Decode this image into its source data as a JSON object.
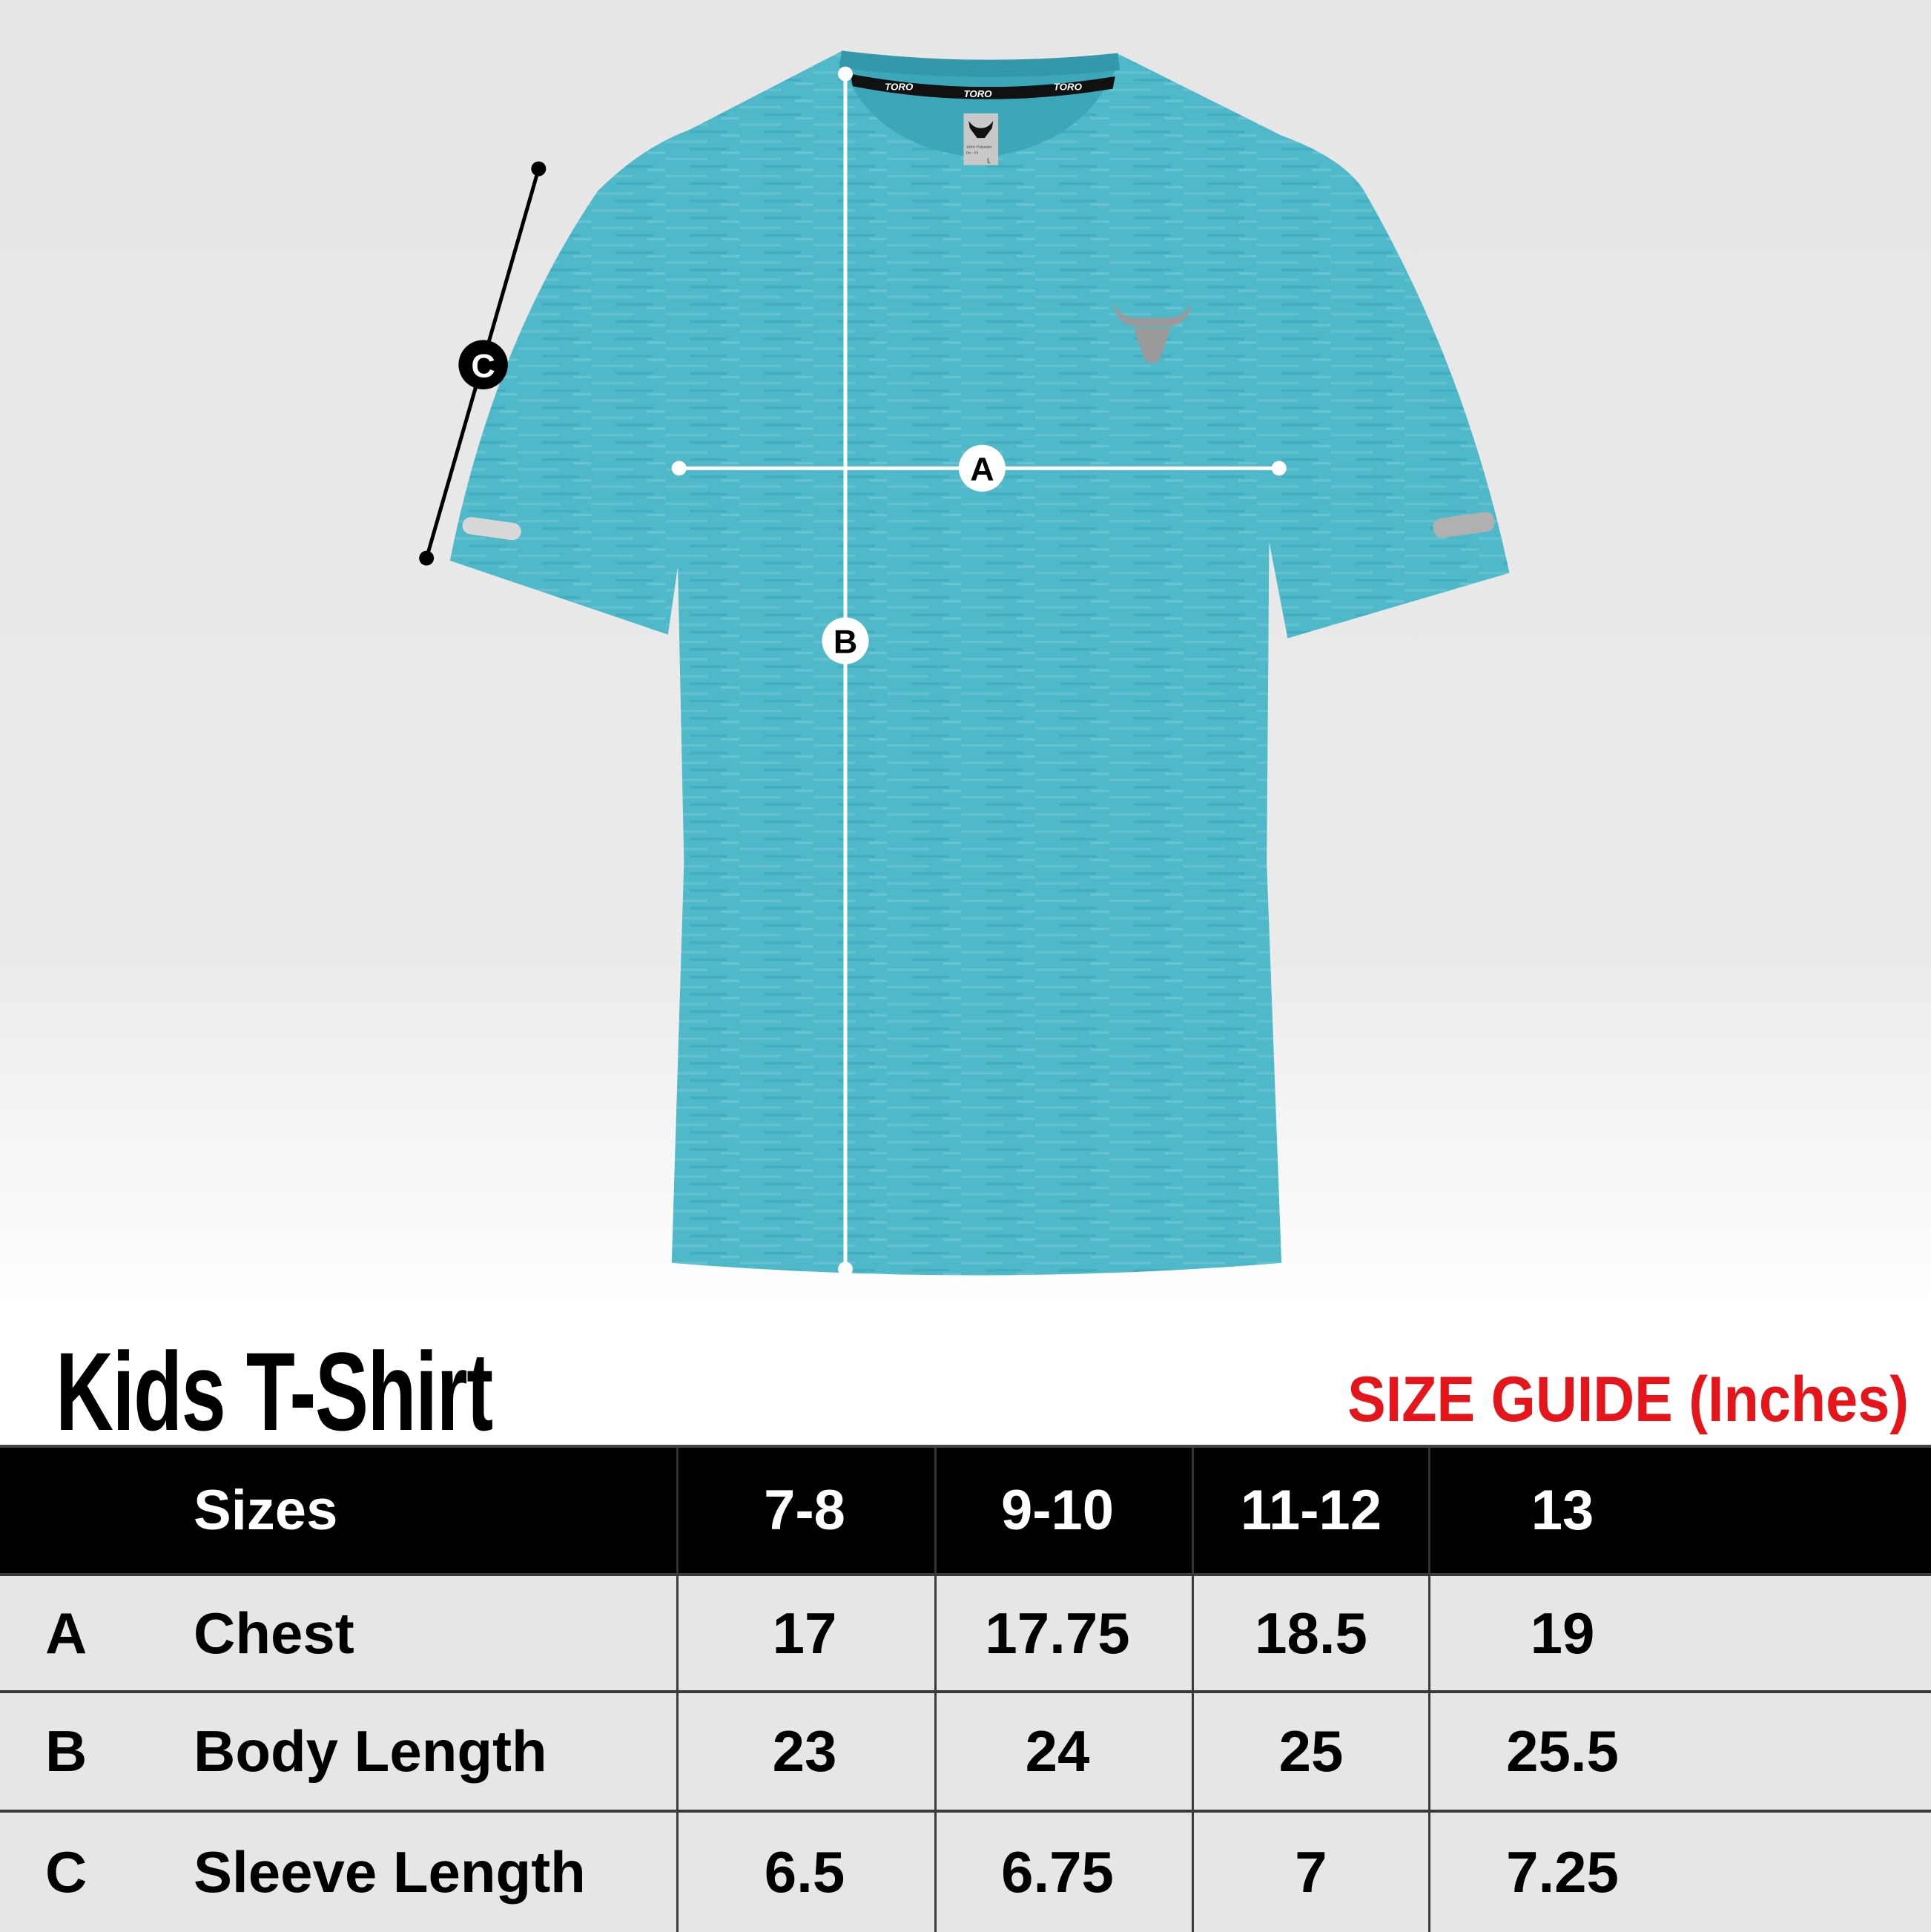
{
  "product_title": "Kids T-Shirt",
  "size_guide_label": "SIZE GUIDE (Inches)",
  "shirt": {
    "color": "#4fb8c9",
    "neck_tape": [
      "TORO",
      "TORO",
      "TORO"
    ],
    "tag": {
      "material": "100% Polyester",
      "fabric": "Dri - Fit",
      "size": "L"
    },
    "logo": "bull-head-logo"
  },
  "measurements": {
    "chest": "A",
    "body_length": "B",
    "sleeve_length": "C"
  },
  "table": {
    "header": {
      "label": "Sizes",
      "sizes": [
        "7-8",
        "9-10",
        "11-12",
        "13"
      ]
    },
    "rows": [
      {
        "key": "A",
        "label": "Chest",
        "values": [
          "17",
          "17.75",
          "18.5",
          "19"
        ]
      },
      {
        "key": "B",
        "label": "Body Length",
        "values": [
          "23",
          "24",
          "25",
          "25.5"
        ]
      },
      {
        "key": "C",
        "label": "Sleeve Length",
        "values": [
          "6.5",
          "6.75",
          "7",
          "7.25"
        ]
      }
    ]
  }
}
